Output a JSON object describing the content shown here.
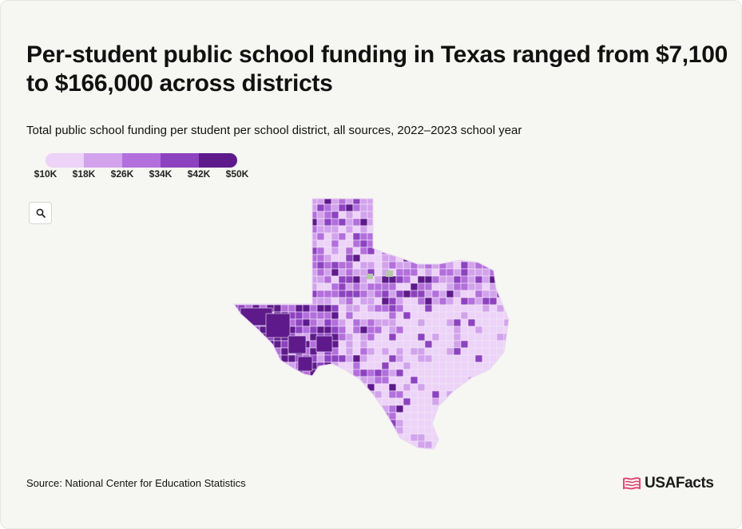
{
  "header": {
    "title": "Per-student public school funding in Texas ranged from $7,100 to $166,000 across districts",
    "subtitle": "Total public school funding per student per school district, all sources, 2022–2023 school year"
  },
  "legend": {
    "labels": [
      "$10K",
      "$18K",
      "$26K",
      "$34K",
      "$42K",
      "$50K"
    ],
    "colors": [
      "#ecd3f7",
      "#d2a3ec",
      "#b36fdc",
      "#8d43c0",
      "#5e1a8b"
    ],
    "no_data_color": "#b5c9a6"
  },
  "map": {
    "state": "Texas",
    "zoom_icon": "search-icon"
  },
  "footer": {
    "source": "Source: National Center for Education Statistics",
    "logo_text": "USAFacts",
    "logo_icon": "us-flag-icon"
  }
}
